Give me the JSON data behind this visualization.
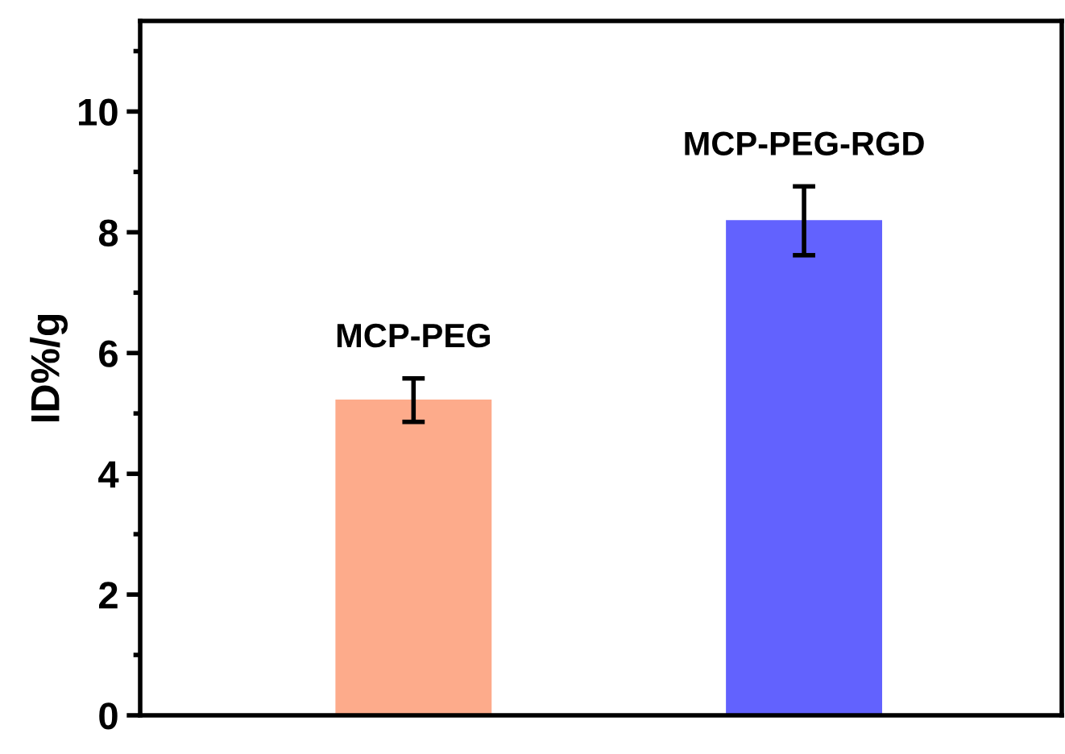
{
  "chart_data": {
    "type": "bar",
    "ylabel": "ID%/g",
    "categories": [
      "MCP-PEG",
      "MCP-PEG-RGD"
    ],
    "values": [
      5.23,
      8.2
    ],
    "errors": [
      [
        4.86,
        5.58
      ],
      [
        7.62,
        8.76
      ]
    ],
    "colors": [
      "#fdab8b",
      "#6262fe"
    ],
    "ylim": [
      0,
      11.5
    ],
    "yticks": [
      0,
      2,
      4,
      6,
      8,
      10
    ],
    "grid": false,
    "legend": false,
    "tick_labels": "y"
  }
}
